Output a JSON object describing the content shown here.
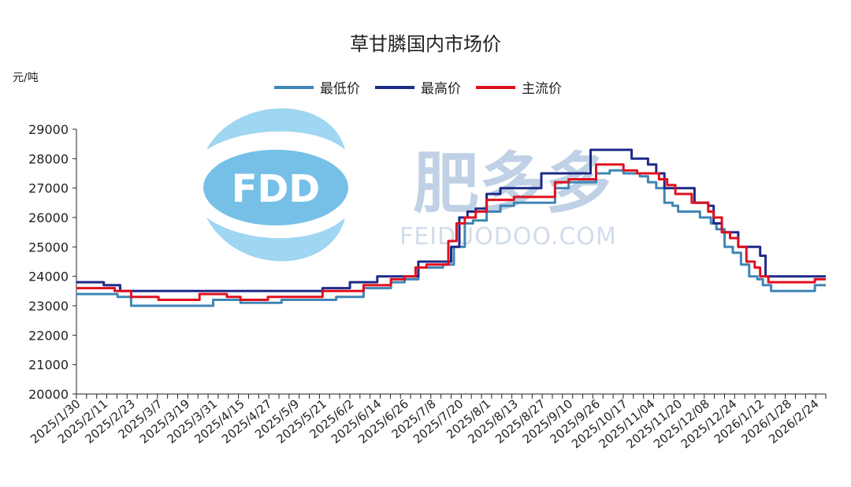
{
  "chart_data": {
    "type": "line",
    "title": "草甘膦国内市场价",
    "ylabel": "元/吨",
    "ylim": [
      20000,
      29000
    ],
    "yticks": [
      20000,
      21000,
      22000,
      23000,
      24000,
      25000,
      26000,
      27000,
      28000,
      29000
    ],
    "x_tick_labels": [
      "2025/1/30",
      "2025/2/11",
      "2025/2/23",
      "2025/3/7",
      "2025/3/19",
      "2025/3/31",
      "2025/4/15",
      "2025/4/27",
      "2025/5/9",
      "2025/5/21",
      "2025/6/2",
      "2025/6/14",
      "2025/6/26",
      "2025/7/8",
      "2025/7/20",
      "2025/8/1",
      "2025/8/13",
      "2025/8/27",
      "2025/9/10",
      "2025/9/26",
      "2025/10/17",
      "2025/11/04",
      "2025/11/20",
      "2025/12/08",
      "2025/12/24",
      "2026/1/12",
      "2026/1/28",
      "2026/2/24"
    ],
    "legend_position": "top",
    "grid": false,
    "series": [
      {
        "name": "最低价",
        "color": "#3f86b5",
        "x": [
          0,
          1.2,
          1.5,
          2,
          2.4,
          2.8,
          3,
          3.5,
          4,
          4.5,
          5,
          5.5,
          6,
          6.5,
          7,
          7.5,
          8,
          8.5,
          9,
          9.5,
          10,
          10.5,
          11,
          11.5,
          12,
          12.5,
          13,
          13.1,
          13.4,
          13.8,
          14.2,
          14.5,
          15,
          15.5,
          16,
          16.5,
          17,
          17.5,
          18,
          18.5,
          19,
          19.5,
          20,
          20.4,
          20.6,
          20.9,
          21.2,
          21.5,
          21.8,
          22,
          22.4,
          22.8,
          23.2,
          23.4,
          23.7,
          24,
          24.3,
          24.6,
          24.9,
          25.1,
          25.4,
          25.7,
          26,
          26.5,
          26.8,
          27,
          27.4
        ],
        "values": [
          23400,
          23400,
          23300,
          23000,
          23000,
          23000,
          23000,
          23000,
          23000,
          23000,
          23200,
          23200,
          23100,
          23100,
          23100,
          23200,
          23200,
          23200,
          23200,
          23300,
          23300,
          23600,
          23600,
          23800,
          23900,
          24300,
          24300,
          24300,
          24400,
          25000,
          25800,
          25900,
          26200,
          26400,
          26500,
          26500,
          26500,
          27000,
          27200,
          27200,
          27500,
          27600,
          27500,
          27500,
          27400,
          27200,
          27000,
          26500,
          26400,
          26200,
          26200,
          26000,
          25800,
          25600,
          25000,
          24800,
          24400,
          24000,
          23900,
          23700,
          23500,
          23500,
          23500,
          23500,
          23500,
          23700,
          23700
        ]
      },
      {
        "name": "最高价",
        "color": "#1e2a88",
        "x": [
          0,
          0.8,
          1,
          1.4,
          1.6,
          2,
          3,
          4,
          4.5,
          5,
          5.5,
          6,
          6.5,
          7,
          7.5,
          8,
          8.5,
          9,
          9.5,
          10,
          10.5,
          11,
          11.5,
          12,
          12.5,
          13,
          13.2,
          13.5,
          13.7,
          14,
          14.3,
          14.6,
          15,
          15.5,
          16,
          16.5,
          17,
          17.5,
          18,
          18.5,
          18.8,
          19,
          19.5,
          20,
          20.3,
          20.6,
          20.9,
          21.2,
          21.5,
          21.9,
          22.2,
          22.6,
          22.9,
          23.1,
          23.3,
          23.6,
          23.9,
          24.2,
          24.5,
          24.8,
          25,
          25.2,
          25.5,
          26,
          26.5,
          27,
          27.4
        ],
        "values": [
          23800,
          23800,
          23700,
          23700,
          23500,
          23500,
          23500,
          23500,
          23500,
          23500,
          23500,
          23500,
          23500,
          23500,
          23500,
          23500,
          23500,
          23600,
          23600,
          23800,
          23800,
          24000,
          24000,
          24000,
          24500,
          24500,
          24500,
          24500,
          25000,
          26000,
          26200,
          26300,
          26800,
          27000,
          27000,
          27000,
          27500,
          27500,
          27500,
          27500,
          28300,
          28300,
          28300,
          28300,
          28000,
          28000,
          27800,
          27500,
          27000,
          27000,
          27000,
          26500,
          26500,
          26400,
          25800,
          25500,
          25500,
          25000,
          25000,
          25000,
          24700,
          24000,
          24000,
          24000,
          24000,
          24000,
          24000
        ]
      },
      {
        "name": "主流价",
        "color": "#e0101e",
        "x": [
          0,
          1,
          1.4,
          1.7,
          2,
          2.5,
          3,
          3.5,
          4,
          4.5,
          5,
          5.5,
          6,
          6.5,
          7,
          7.5,
          8,
          8.5,
          9,
          9.5,
          10,
          10.5,
          11,
          11.5,
          12,
          12.4,
          12.8,
          13,
          13.3,
          13.6,
          13.9,
          14.2,
          14.6,
          15,
          15.5,
          16,
          16.5,
          17,
          17.5,
          18,
          18.5,
          19,
          19.5,
          20,
          20.5,
          21,
          21.3,
          21.6,
          21.9,
          22.2,
          22.5,
          22.8,
          23.1,
          23.3,
          23.6,
          23.9,
          24.2,
          24.5,
          24.8,
          25,
          25.3,
          25.6,
          26,
          26.5,
          26.8,
          27,
          27.4
        ],
        "values": [
          23600,
          23600,
          23500,
          23500,
          23300,
          23300,
          23200,
          23200,
          23200,
          23400,
          23400,
          23300,
          23200,
          23200,
          23300,
          23300,
          23300,
          23300,
          23500,
          23500,
          23500,
          23700,
          23700,
          23900,
          24000,
          24300,
          24400,
          24400,
          24400,
          25200,
          25800,
          26000,
          26200,
          26600,
          26600,
          26700,
          26700,
          26700,
          27200,
          27300,
          27300,
          27800,
          27800,
          27600,
          27500,
          27500,
          27300,
          27100,
          26800,
          26800,
          26500,
          26500,
          26200,
          26000,
          25500,
          25300,
          25000,
          24500,
          24300,
          24000,
          23800,
          23800,
          23800,
          23800,
          23800,
          23900,
          23900
        ]
      }
    ]
  },
  "watermark": {
    "logo_letters": "FDD",
    "brand_cn": "肥多多",
    "brand_en": "FEIDUODOO.COM"
  }
}
